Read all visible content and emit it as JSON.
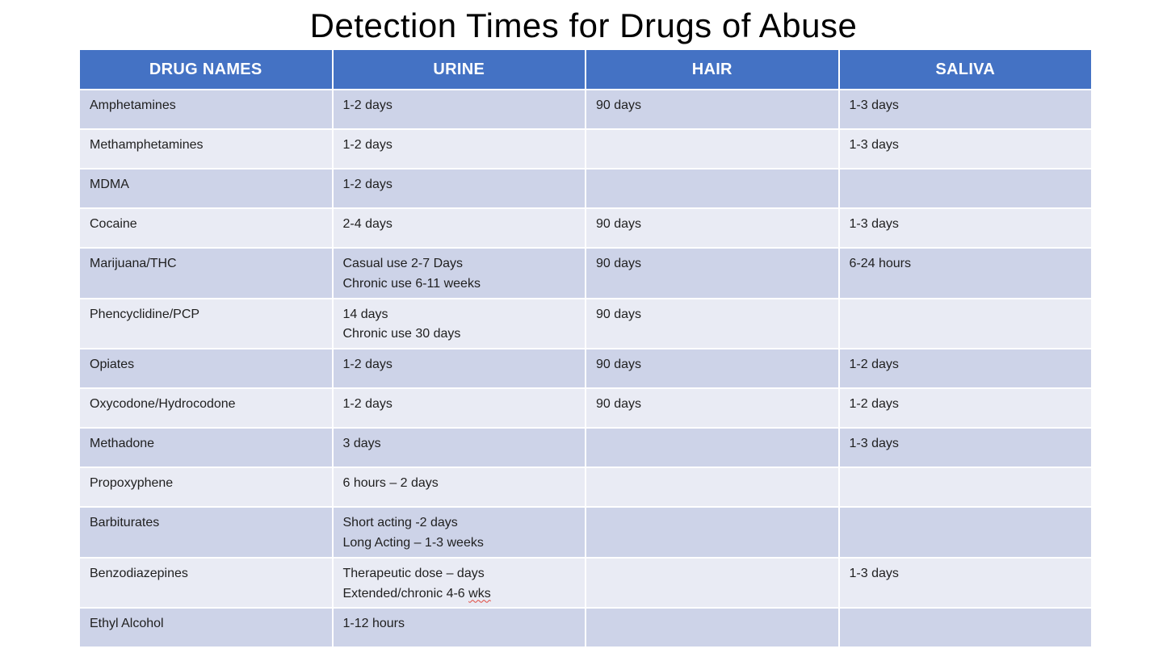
{
  "title": "Detection Times for Drugs of Abuse",
  "colors": {
    "header_bg": "#4472C4",
    "header_text": "#FFFFFF",
    "band_dark": "#CDD3E8",
    "band_light": "#E9EBF4",
    "cell_text": "#1F1F1F",
    "spellcheck_squiggle": "#E0483E"
  },
  "table": {
    "headers": [
      "DRUG NAMES",
      "URINE",
      "HAIR",
      "SALIVA"
    ],
    "rows": [
      {
        "drug": "Amphetamines",
        "urine": [
          "1-2 days"
        ],
        "hair": "90 days",
        "saliva": "1-3 days"
      },
      {
        "drug": "Methamphetamines",
        "urine": [
          "1-2 days"
        ],
        "hair": "",
        "saliva": "1-3 days"
      },
      {
        "drug": "MDMA",
        "urine": [
          "1-2 days"
        ],
        "hair": "",
        "saliva": ""
      },
      {
        "drug": "Cocaine",
        "urine": [
          "2-4 days"
        ],
        "hair": "90 days",
        "saliva": "1-3 days"
      },
      {
        "drug": "Marijuana/THC",
        "urine": [
          "Casual use 2-7 Days",
          "Chronic use 6-11 weeks"
        ],
        "hair": "90 days",
        "saliva": "6-24 hours"
      },
      {
        "drug": "Phencyclidine/PCP",
        "urine": [
          "14 days",
          "Chronic use 30 days"
        ],
        "hair": "90 days",
        "saliva": ""
      },
      {
        "drug": "Opiates",
        "urine": [
          "1-2 days"
        ],
        "hair": "90 days",
        "saliva": "1-2 days"
      },
      {
        "drug": "Oxycodone/Hydrocodone",
        "urine": [
          "1-2 days"
        ],
        "hair": "90 days",
        "saliva": "1-2 days"
      },
      {
        "drug": "Methadone",
        "urine": [
          "3 days"
        ],
        "hair": "",
        "saliva": "1-3 days"
      },
      {
        "drug": "Propoxyphene",
        "urine": [
          "6 hours – 2 days"
        ],
        "hair": "",
        "saliva": ""
      },
      {
        "drug": "Barbiturates",
        "urine": [
          "Short acting -2 days",
          "Long Acting – 1-3 weeks"
        ],
        "hair": "",
        "saliva": ""
      },
      {
        "drug": "Benzodiazepines",
        "urine": [
          "Therapeutic dose – days",
          "Extended/chronic 4-6 wks"
        ],
        "hair": "",
        "saliva": "1-3 days",
        "spellcheck": {
          "line": 1,
          "word": "wks"
        }
      },
      {
        "drug": "Ethyl Alcohol",
        "urine": [
          "1-12 hours"
        ],
        "hair": "",
        "saliva": ""
      }
    ]
  }
}
